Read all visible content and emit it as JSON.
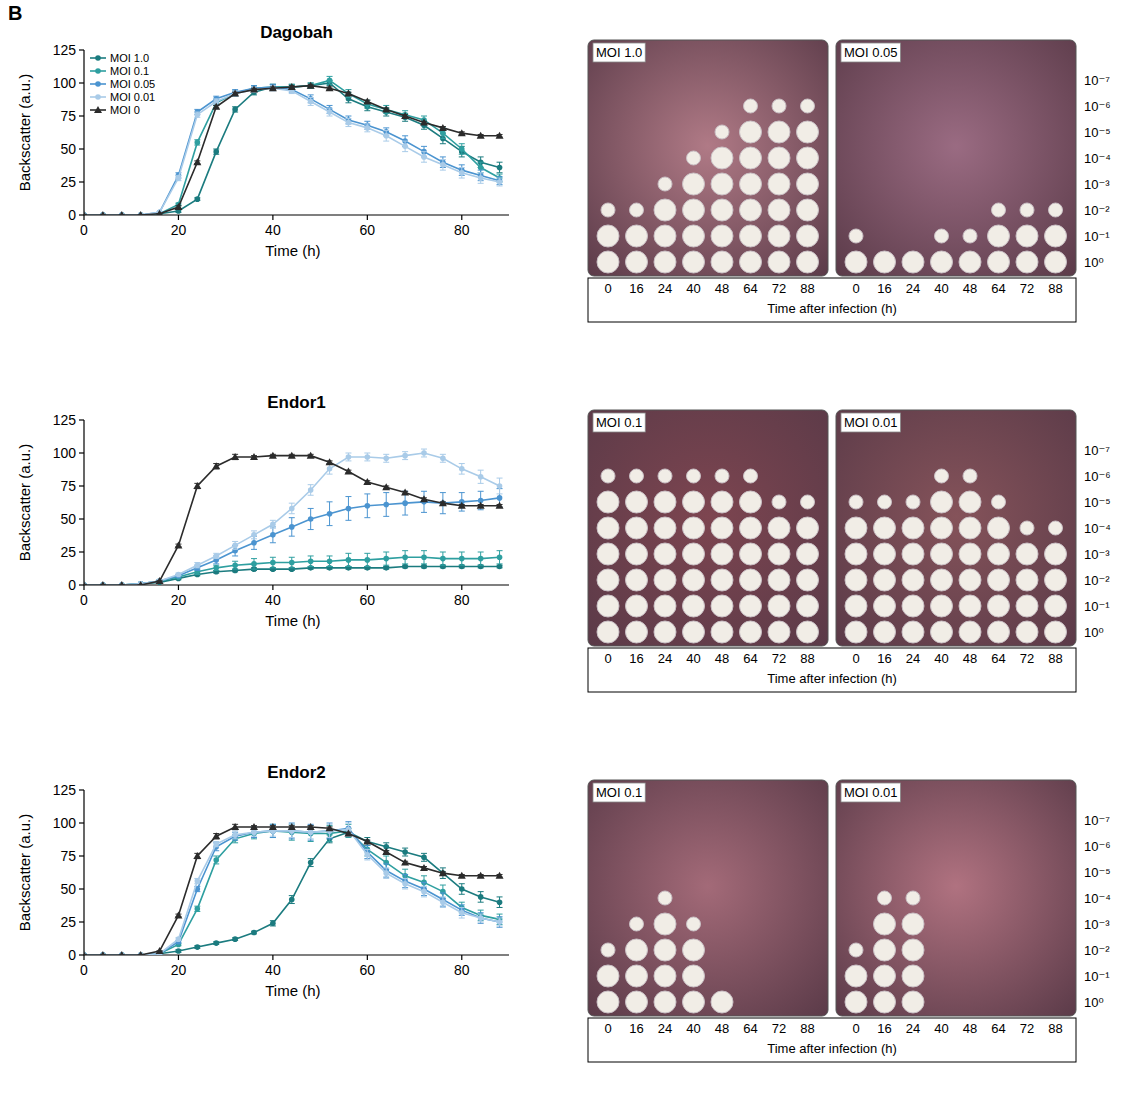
{
  "panel_label": "B",
  "chart_data": [
    {
      "type": "line",
      "title": "Dagobah",
      "xlabel": "Time (h)",
      "ylabel": "Backscatter (a.u.)",
      "x": [
        0,
        4,
        8,
        12,
        16,
        20,
        24,
        28,
        32,
        36,
        40,
        44,
        48,
        52,
        56,
        60,
        64,
        68,
        72,
        76,
        80,
        84,
        88
      ],
      "xlim": [
        0,
        90
      ],
      "xticks": [
        0,
        20,
        40,
        60,
        80
      ],
      "ylim": [
        0,
        125
      ],
      "yticks": [
        0,
        25,
        50,
        75,
        100,
        125
      ],
      "grid": false,
      "legend": "upper left",
      "series": [
        {
          "name": "MOI 1.0",
          "color": "#1b7b7f",
          "marker": "circle",
          "values": [
            0,
            0,
            0,
            0,
            1,
            3,
            12,
            48,
            80,
            93,
            97,
            97,
            98,
            100,
            88,
            82,
            78,
            74,
            68,
            58,
            48,
            40,
            36
          ],
          "errors": [
            0,
            0,
            0,
            0,
            0,
            1,
            1,
            2,
            2,
            2,
            2,
            2,
            2,
            2,
            3,
            3,
            3,
            3,
            3,
            4,
            4,
            4,
            4
          ]
        },
        {
          "name": "MOI 0.1",
          "color": "#2e9fa0",
          "marker": "circle",
          "values": [
            0,
            0,
            0,
            0,
            1,
            8,
            55,
            85,
            92,
            96,
            97,
            97,
            98,
            102,
            92,
            84,
            80,
            76,
            72,
            62,
            50,
            36,
            28
          ],
          "errors": [
            0,
            0,
            0,
            0,
            0,
            1,
            2,
            2,
            2,
            2,
            2,
            2,
            2,
            3,
            3,
            3,
            3,
            3,
            3,
            4,
            4,
            4,
            3
          ]
        },
        {
          "name": "MOI 0.05",
          "color": "#4b94d0",
          "marker": "circle",
          "values": [
            0,
            0,
            0,
            0,
            2,
            30,
            78,
            88,
            93,
            96,
            97,
            95,
            88,
            80,
            72,
            68,
            63,
            56,
            48,
            40,
            34,
            30,
            26
          ],
          "errors": [
            0,
            0,
            0,
            0,
            0,
            2,
            2,
            2,
            2,
            2,
            2,
            2,
            3,
            3,
            3,
            3,
            3,
            4,
            4,
            4,
            4,
            4,
            3
          ]
        },
        {
          "name": "MOI 0.01",
          "color": "#a9cbe8",
          "marker": "circle",
          "values": [
            0,
            0,
            0,
            0,
            2,
            28,
            76,
            86,
            92,
            95,
            96,
            94,
            86,
            78,
            70,
            66,
            60,
            52,
            44,
            38,
            32,
            28,
            25
          ],
          "errors": [
            0,
            0,
            0,
            0,
            0,
            2,
            2,
            2,
            2,
            2,
            2,
            2,
            3,
            3,
            3,
            3,
            4,
            4,
            4,
            4,
            4,
            4,
            3
          ]
        },
        {
          "name": "MOI 0",
          "color": "#2b2b2b",
          "marker": "triangle",
          "values": [
            0,
            0,
            0,
            0,
            1,
            6,
            40,
            82,
            92,
            95,
            96,
            97,
            98,
            96,
            92,
            86,
            80,
            75,
            70,
            66,
            62,
            60,
            60
          ],
          "errors": [
            0,
            0,
            0,
            0,
            0,
            1,
            1,
            1,
            1,
            1,
            1,
            1,
            1,
            1,
            1,
            1,
            1,
            1,
            1,
            1,
            1,
            1,
            1
          ]
        }
      ]
    },
    {
      "type": "line",
      "title": "Endor1",
      "xlabel": "Time (h)",
      "ylabel": "Backscatter (a.u.)",
      "x": [
        0,
        4,
        8,
        12,
        16,
        20,
        24,
        28,
        32,
        36,
        40,
        44,
        48,
        52,
        56,
        60,
        64,
        68,
        72,
        76,
        80,
        84,
        88
      ],
      "xlim": [
        0,
        90
      ],
      "xticks": [
        0,
        20,
        40,
        60,
        80
      ],
      "ylim": [
        0,
        125
      ],
      "yticks": [
        0,
        25,
        50,
        75,
        100,
        125
      ],
      "grid": false,
      "series": [
        {
          "color": "#1b7b7f",
          "marker": "circle",
          "values": [
            0,
            0,
            0,
            1,
            2,
            5,
            8,
            10,
            11,
            12,
            12,
            12,
            13,
            13,
            13,
            13,
            13,
            14,
            14,
            14,
            14,
            14,
            14
          ],
          "errors": [
            0,
            0,
            0,
            0,
            0,
            1,
            1,
            1,
            1,
            1,
            1,
            1,
            1,
            1,
            1,
            1,
            1,
            1,
            1,
            1,
            1,
            1,
            1
          ]
        },
        {
          "color": "#2e9fa0",
          "marker": "circle",
          "values": [
            0,
            0,
            0,
            1,
            3,
            6,
            10,
            13,
            15,
            16,
            17,
            17,
            18,
            18,
            19,
            19,
            20,
            21,
            21,
            20,
            20,
            20,
            21
          ],
          "errors": [
            0,
            0,
            0,
            0,
            1,
            1,
            2,
            2,
            3,
            4,
            4,
            4,
            4,
            4,
            5,
            5,
            5,
            5,
            5,
            5,
            5,
            5,
            5
          ]
        },
        {
          "color": "#4b94d0",
          "marker": "circle",
          "values": [
            0,
            0,
            0,
            1,
            3,
            7,
            13,
            19,
            26,
            32,
            38,
            44,
            50,
            54,
            58,
            60,
            61,
            62,
            63,
            62,
            63,
            64,
            66
          ],
          "errors": [
            0,
            0,
            0,
            0,
            1,
            1,
            2,
            3,
            4,
            5,
            6,
            7,
            8,
            9,
            9,
            9,
            9,
            9,
            8,
            8,
            7,
            7,
            7
          ]
        },
        {
          "color": "#a9cbe8",
          "marker": "circle",
          "values": [
            0,
            0,
            0,
            1,
            3,
            8,
            15,
            22,
            30,
            38,
            46,
            58,
            72,
            88,
            97,
            97,
            96,
            98,
            100,
            96,
            88,
            82,
            75
          ],
          "errors": [
            0,
            0,
            0,
            0,
            1,
            1,
            2,
            2,
            3,
            3,
            3,
            4,
            4,
            4,
            3,
            3,
            3,
            3,
            3,
            3,
            4,
            5,
            6
          ]
        },
        {
          "color": "#2b2b2b",
          "marker": "triangle",
          "values": [
            0,
            0,
            0,
            0,
            3,
            30,
            75,
            90,
            97,
            97,
            98,
            98,
            98,
            93,
            86,
            78,
            74,
            70,
            65,
            62,
            60,
            60,
            60
          ],
          "errors": [
            0,
            0,
            0,
            0,
            0,
            1,
            2,
            2,
            2,
            1,
            1,
            1,
            1,
            1,
            1,
            1,
            1,
            1,
            1,
            1,
            1,
            1,
            1
          ]
        }
      ]
    },
    {
      "type": "line",
      "title": "Endor2",
      "xlabel": "Time (h)",
      "ylabel": "Backscatter (a.u.)",
      "x": [
        0,
        4,
        8,
        12,
        16,
        20,
        24,
        28,
        32,
        36,
        40,
        44,
        48,
        52,
        56,
        60,
        64,
        68,
        72,
        76,
        80,
        84,
        88
      ],
      "xlim": [
        0,
        90
      ],
      "xticks": [
        0,
        20,
        40,
        60,
        80
      ],
      "ylim": [
        0,
        125
      ],
      "yticks": [
        0,
        25,
        50,
        75,
        100,
        125
      ],
      "grid": false,
      "series": [
        {
          "color": "#1b7b7f",
          "marker": "circle",
          "values": [
            0,
            0,
            0,
            0,
            1,
            3,
            6,
            9,
            12,
            17,
            24,
            42,
            70,
            88,
            93,
            86,
            82,
            78,
            74,
            62,
            50,
            44,
            40
          ],
          "errors": [
            0,
            0,
            0,
            0,
            0,
            1,
            1,
            1,
            1,
            1,
            2,
            3,
            3,
            3,
            3,
            3,
            3,
            3,
            3,
            4,
            4,
            4,
            4
          ]
        },
        {
          "color": "#2e9fa0",
          "marker": "circle",
          "values": [
            0,
            0,
            0,
            0,
            1,
            8,
            35,
            72,
            88,
            92,
            94,
            93,
            92,
            92,
            94,
            80,
            70,
            60,
            55,
            48,
            36,
            30,
            27
          ],
          "errors": [
            0,
            0,
            0,
            0,
            0,
            1,
            2,
            3,
            3,
            4,
            5,
            6,
            6,
            6,
            5,
            5,
            5,
            5,
            5,
            5,
            4,
            4,
            4
          ]
        },
        {
          "color": "#4b94d0",
          "marker": "circle",
          "values": [
            0,
            0,
            0,
            0,
            1,
            10,
            50,
            82,
            90,
            93,
            94,
            94,
            93,
            94,
            96,
            78,
            64,
            56,
            50,
            42,
            34,
            28,
            25
          ],
          "errors": [
            0,
            0,
            0,
            0,
            0,
            1,
            2,
            3,
            3,
            4,
            5,
            6,
            6,
            6,
            5,
            5,
            5,
            5,
            5,
            5,
            4,
            4,
            4
          ]
        },
        {
          "color": "#a9cbe8",
          "marker": "circle",
          "values": [
            0,
            0,
            0,
            0,
            1,
            12,
            56,
            84,
            91,
            93,
            94,
            94,
            93,
            94,
            95,
            76,
            62,
            54,
            48,
            40,
            32,
            28,
            25
          ],
          "errors": [
            0,
            0,
            0,
            0,
            0,
            1,
            2,
            2,
            3,
            3,
            4,
            5,
            5,
            5,
            5,
            4,
            4,
            4,
            4,
            4,
            4,
            3,
            3
          ]
        },
        {
          "color": "#2b2b2b",
          "marker": "triangle",
          "values": [
            0,
            0,
            0,
            0,
            3,
            30,
            75,
            90,
            97,
            97,
            97,
            97,
            97,
            96,
            92,
            86,
            78,
            70,
            66,
            62,
            60,
            60,
            60
          ],
          "errors": [
            0,
            0,
            0,
            0,
            0,
            1,
            2,
            2,
            2,
            1,
            1,
            1,
            1,
            1,
            1,
            1,
            1,
            1,
            1,
            1,
            1,
            1,
            1
          ]
        }
      ]
    }
  ],
  "plate_panels": [
    {
      "xlabel": "Time after infection (h)",
      "times": [
        0,
        16,
        24,
        40,
        48,
        64,
        72,
        88
      ],
      "dilutions": [
        "10⁻⁷",
        "10⁻⁶",
        "10⁻⁵",
        "10⁻⁴",
        "10⁻³",
        "10⁻²",
        "10⁻¹",
        "10⁰"
      ],
      "plates": [
        {
          "label": "MOI 1.0",
          "spot_rows": [
            3,
            3,
            4,
            5,
            6,
            7,
            7,
            7
          ]
        },
        {
          "label": "MOI 0.05",
          "spot_rows": [
            2,
            1,
            1,
            2,
            2,
            3,
            3,
            3
          ]
        }
      ]
    },
    {
      "xlabel": "Time after infection (h)",
      "times": [
        0,
        16,
        24,
        40,
        48,
        64,
        72,
        88
      ],
      "dilutions": [
        "10⁻⁷",
        "10⁻⁶",
        "10⁻⁵",
        "10⁻⁴",
        "10⁻³",
        "10⁻²",
        "10⁻¹",
        "10⁰"
      ],
      "plates": [
        {
          "label": "MOI 0.1",
          "spot_rows": [
            7,
            7,
            7,
            7,
            7,
            7,
            6,
            6
          ]
        },
        {
          "label": "MOI 0.01",
          "spot_rows": [
            6,
            6,
            6,
            7,
            7,
            6,
            5,
            5
          ]
        }
      ]
    },
    {
      "xlabel": "Time after infection (h)",
      "times": [
        0,
        16,
        24,
        40,
        48,
        64,
        72,
        88
      ],
      "dilutions": [
        "10⁻⁷",
        "10⁻⁶",
        "10⁻⁵",
        "10⁻⁴",
        "10⁻³",
        "10⁻²",
        "10⁻¹",
        "10⁰"
      ],
      "plates": [
        {
          "label": "MOI 0.1",
          "spot_rows": [
            3,
            4,
            5,
            4,
            1,
            0,
            0,
            0
          ]
        },
        {
          "label": "MOI 0.01",
          "spot_rows": [
            3,
            5,
            5,
            0,
            0,
            0,
            0,
            0
          ]
        }
      ]
    }
  ]
}
